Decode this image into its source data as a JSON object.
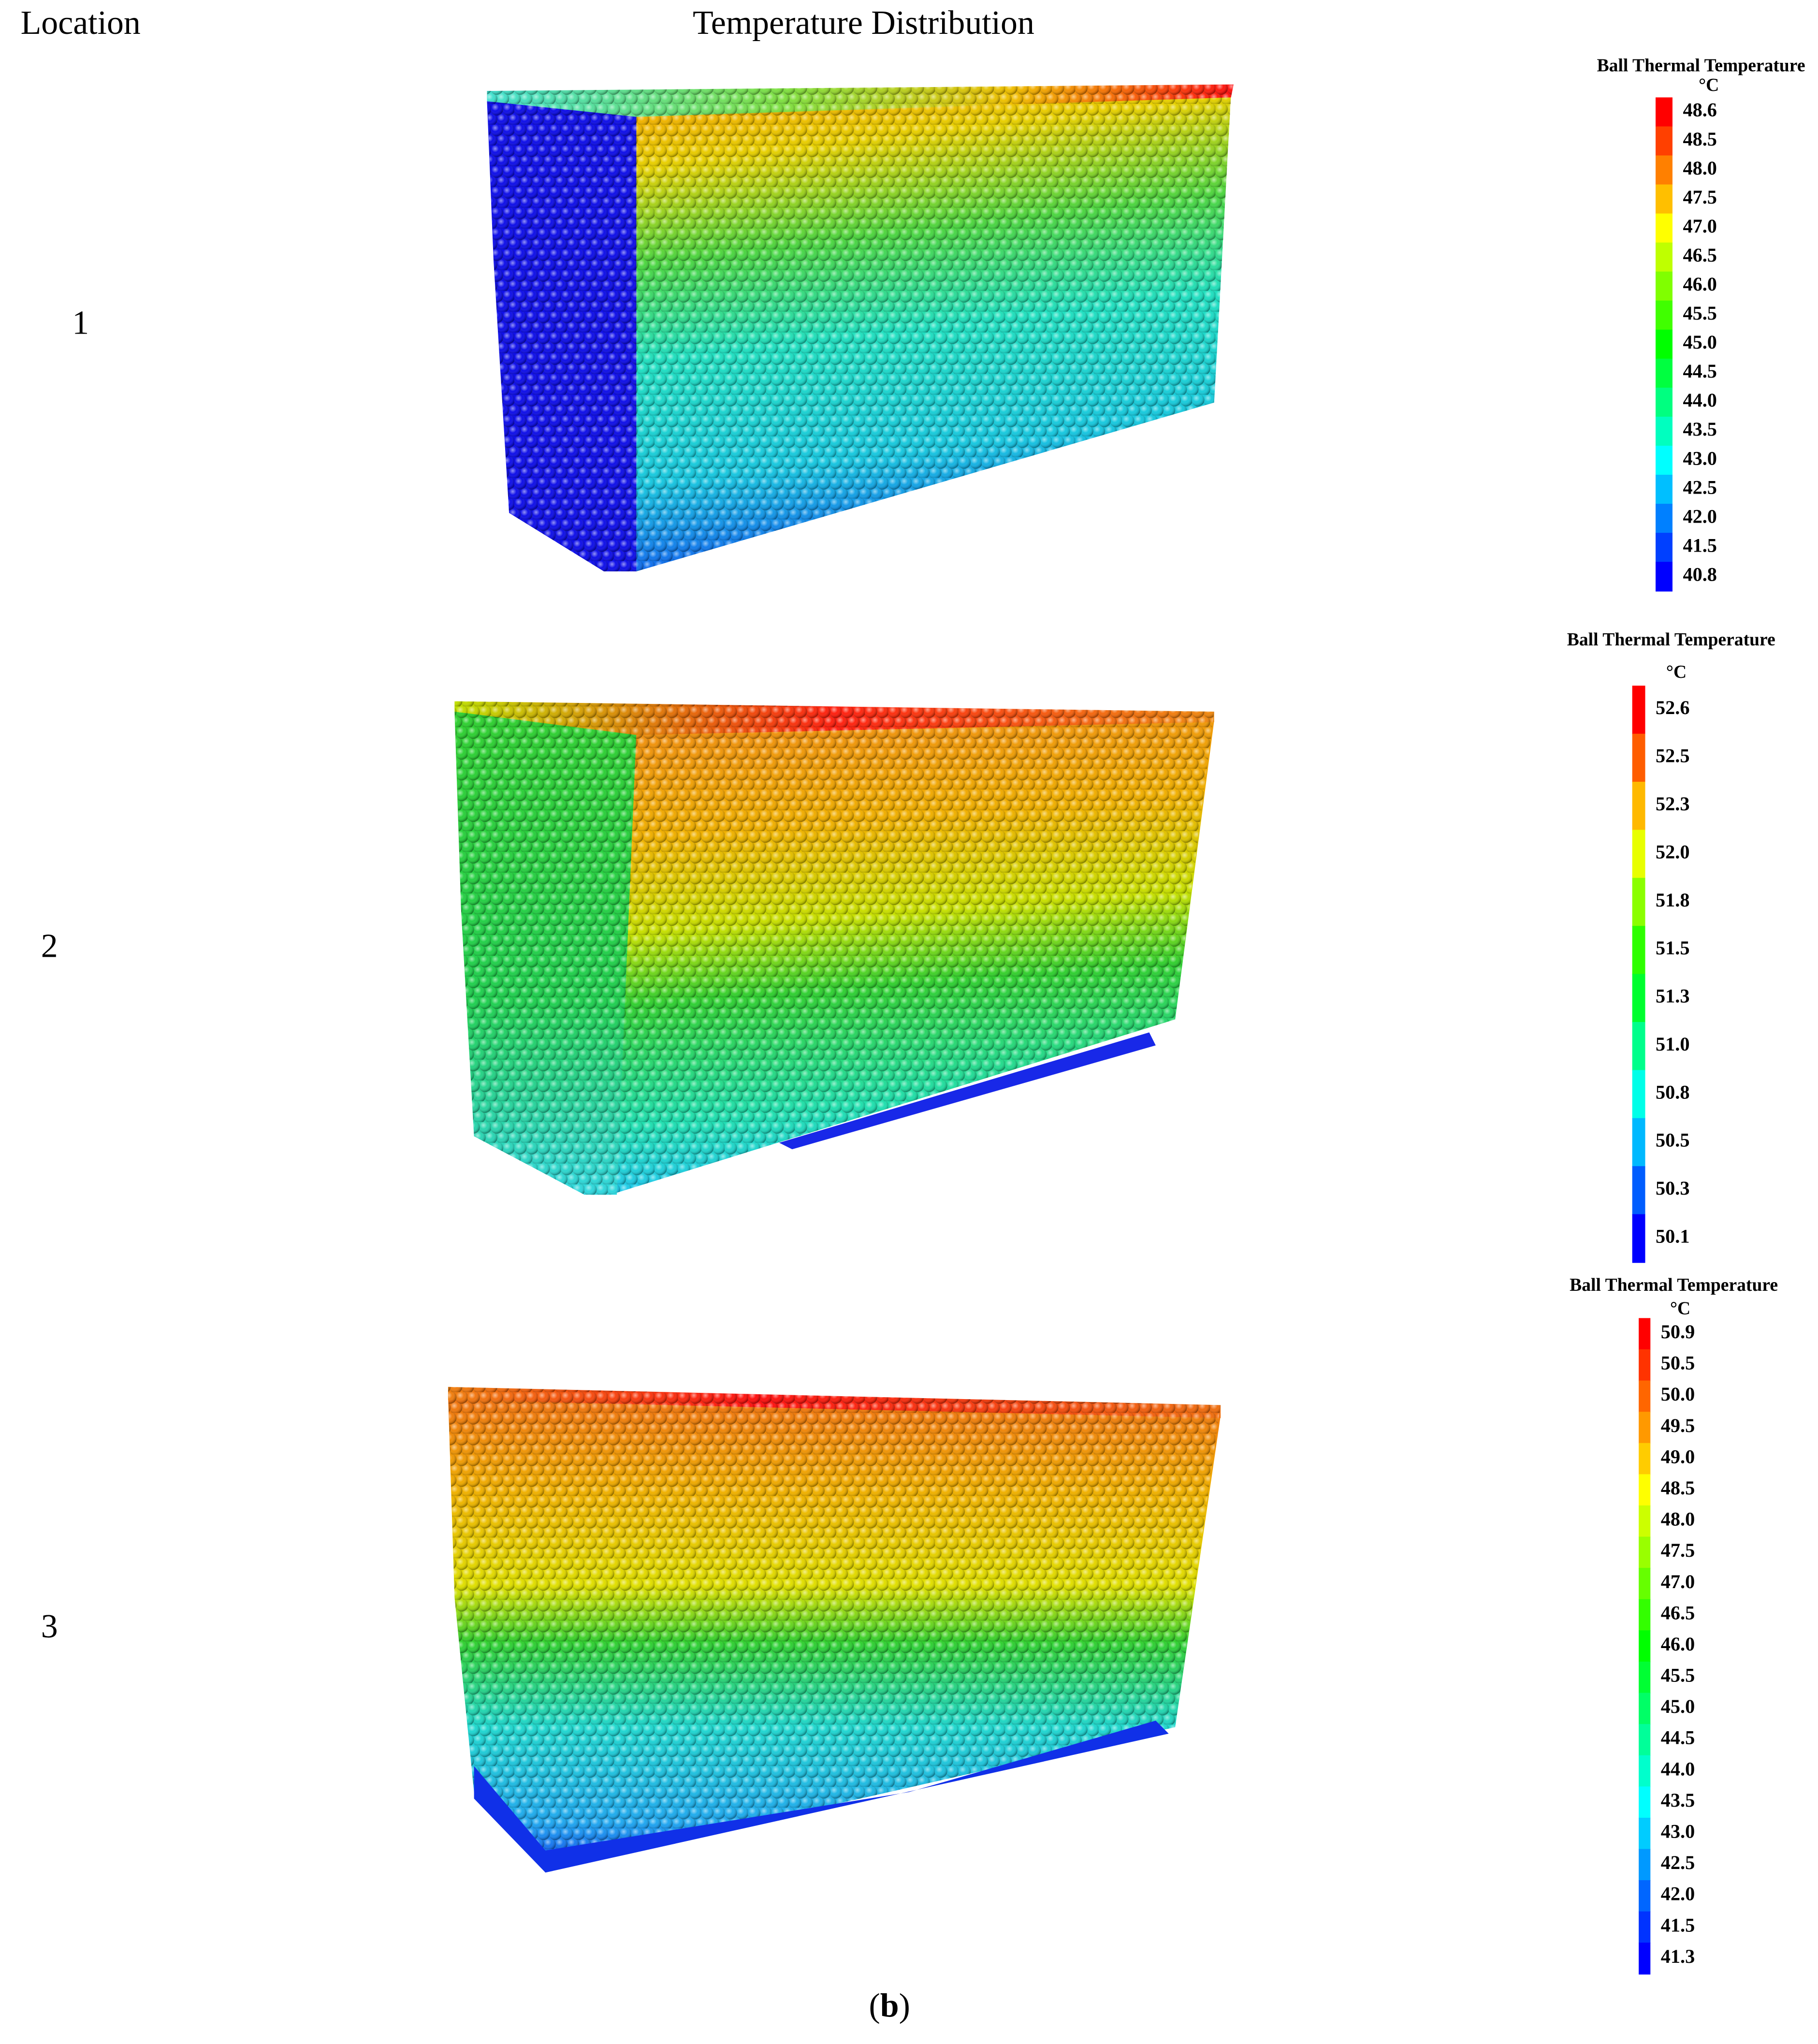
{
  "header": {
    "location": "Location",
    "title": "Temperature Distribution"
  },
  "rows": [
    {
      "label": "1",
      "legend": {
        "title": "Ball Thermal Temperature",
        "unit": "°C",
        "ticks": [
          "48.6",
          "48.5",
          "48.0",
          "47.5",
          "47.0",
          "46.5",
          "46.0",
          "45.5",
          "45.0",
          "44.5",
          "44.0",
          "43.5",
          "43.0",
          "42.5",
          "42.0",
          "41.5",
          "40.8"
        ]
      }
    },
    {
      "label": "2",
      "legend": {
        "title": "Ball Thermal Temperature",
        "unit": "°C",
        "ticks": [
          "52.6",
          "52.5",
          "52.3",
          "52.0",
          "51.8",
          "51.5",
          "51.3",
          "51.0",
          "50.8",
          "50.5",
          "50.3",
          "50.1"
        ]
      }
    },
    {
      "label": "3",
      "legend": {
        "title": "Ball Thermal Temperature",
        "unit": "°C",
        "ticks": [
          "50.9",
          "50.5",
          "50.0",
          "49.5",
          "49.0",
          "48.5",
          "48.0",
          "47.5",
          "47.0",
          "46.5",
          "46.0",
          "45.5",
          "45.0",
          "44.5",
          "44.0",
          "43.5",
          "43.0",
          "42.5",
          "42.0",
          "41.5",
          "41.3"
        ]
      }
    }
  ],
  "caption": {
    "open": "(",
    "letter": "b",
    "close": ")"
  }
}
